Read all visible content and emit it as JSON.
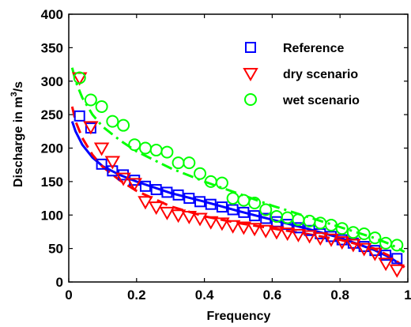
{
  "chart_data": {
    "type": "scatter",
    "xlabel": "Frequency",
    "ylabel_main": "Discharge in m",
    "ylabel_sup": "3",
    "ylabel_tail": "/s",
    "xlim": [
      0,
      1
    ],
    "ylim": [
      0,
      400
    ],
    "xticks": [
      "0",
      "0.2",
      "0.4",
      "0.6",
      "0.8",
      "1"
    ],
    "yticks": [
      "0",
      "50",
      "100",
      "150",
      "200",
      "250",
      "300",
      "350",
      "400"
    ],
    "legend_position": "top-right",
    "series": [
      {
        "name": "Reference",
        "color": "#0000ff",
        "marker": "square",
        "x": [
          0.032,
          0.065,
          0.097,
          0.129,
          0.161,
          0.194,
          0.226,
          0.258,
          0.29,
          0.323,
          0.355,
          0.387,
          0.419,
          0.452,
          0.484,
          0.516,
          0.548,
          0.581,
          0.613,
          0.645,
          0.677,
          0.71,
          0.742,
          0.774,
          0.806,
          0.839,
          0.871,
          0.903,
          0.935,
          0.968
        ],
        "y": [
          248,
          230,
          176,
          166,
          160,
          152,
          143,
          138,
          134,
          130,
          125,
          120,
          116,
          112,
          108,
          104,
          99,
          95,
          90,
          86,
          81,
          77,
          72,
          68,
          63,
          58,
          53,
          47,
          40,
          35
        ],
        "fit_x": [
          0.01,
          0.02,
          0.04,
          0.07,
          0.1,
          0.15,
          0.2,
          0.3,
          0.4,
          0.5,
          0.6,
          0.7,
          0.8,
          0.9,
          0.95,
          0.99
        ],
        "fit_y": [
          240,
          225,
          205,
          186,
          173,
          160,
          150,
          133,
          120,
          106,
          93,
          80,
          66,
          48,
          36,
          22
        ],
        "fit_style": "solid"
      },
      {
        "name": "dry scenario",
        "color": "#ff0000",
        "marker": "triangle-down",
        "x": [
          0.032,
          0.065,
          0.097,
          0.129,
          0.161,
          0.194,
          0.226,
          0.258,
          0.29,
          0.323,
          0.355,
          0.387,
          0.419,
          0.452,
          0.484,
          0.516,
          0.548,
          0.581,
          0.613,
          0.645,
          0.677,
          0.71,
          0.742,
          0.774,
          0.806,
          0.839,
          0.871,
          0.903,
          0.935,
          0.968
        ],
        "y": [
          305,
          232,
          200,
          180,
          155,
          147,
          120,
          112,
          104,
          100,
          98,
          95,
          90,
          88,
          84,
          82,
          80,
          77,
          75,
          73,
          71,
          69,
          66,
          64,
          60,
          56,
          50,
          43,
          28,
          18
        ],
        "fit_x": [
          0.01,
          0.02,
          0.04,
          0.07,
          0.1,
          0.15,
          0.2,
          0.3,
          0.4,
          0.5,
          0.6,
          0.7,
          0.8,
          0.9,
          0.95,
          0.99
        ],
        "fit_y": [
          262,
          240,
          215,
          190,
          172,
          152,
          136,
          113,
          98,
          88,
          80,
          72,
          63,
          50,
          38,
          22
        ],
        "fit_style": "dashed"
      },
      {
        "name": "wet scenario",
        "color": "#00ff00",
        "marker": "circle",
        "x": [
          0.032,
          0.065,
          0.097,
          0.129,
          0.161,
          0.194,
          0.226,
          0.258,
          0.29,
          0.323,
          0.355,
          0.387,
          0.419,
          0.452,
          0.484,
          0.516,
          0.548,
          0.581,
          0.613,
          0.645,
          0.677,
          0.71,
          0.742,
          0.774,
          0.806,
          0.839,
          0.871,
          0.903,
          0.935,
          0.968
        ],
        "y": [
          305,
          272,
          262,
          240,
          234,
          205,
          200,
          197,
          194,
          178,
          178,
          162,
          150,
          148,
          125,
          122,
          118,
          108,
          98,
          96,
          93,
          91,
          88,
          85,
          80,
          74,
          72,
          66,
          58,
          55
        ],
        "fit_x": [
          0.01,
          0.02,
          0.04,
          0.07,
          0.1,
          0.15,
          0.2,
          0.3,
          0.4,
          0.5,
          0.6,
          0.7,
          0.8,
          0.9,
          0.95,
          0.99
        ],
        "fit_y": [
          320,
          300,
          275,
          250,
          232,
          212,
          195,
          170,
          150,
          132,
          114,
          98,
          82,
          66,
          56,
          45
        ],
        "fit_style": "dashdot"
      }
    ]
  }
}
